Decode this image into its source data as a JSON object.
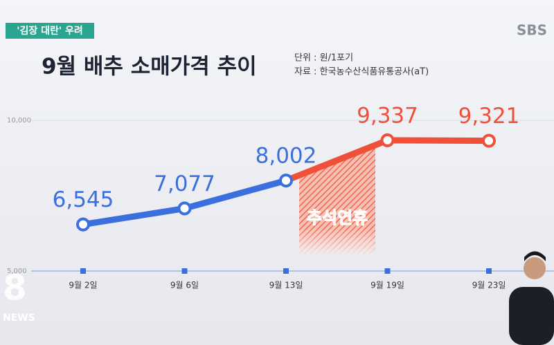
{
  "header": {
    "tag": "'김장 대란' 우려",
    "logo": "SBS",
    "news_logo_number": "8",
    "news_logo_text": "NEWS"
  },
  "chart_data": {
    "type": "line",
    "title": "9월 배추 소매가격 추이",
    "unit_note": "단위 : 원/1포기",
    "source": "자료 : 한국농수산식품유통공사(aT)",
    "annotation": "추석연휴",
    "categories": [
      "9월 2일",
      "9월 6일",
      "9월 13일",
      "9월 19일",
      "9월 23일"
    ],
    "values": [
      6545,
      7077,
      8002,
      9337,
      9321
    ],
    "value_labels": [
      "6,545",
      "7,077",
      "8,002",
      "9,337",
      "9,321"
    ],
    "point_colors": [
      "#3c6fde",
      "#3c6fde",
      "#3c6fde",
      "#f0503a",
      "#f0503a"
    ],
    "ylim": [
      5000,
      10000
    ],
    "yticks": [
      {
        "value": 5000,
        "label": "5,000"
      },
      {
        "value": 10000,
        "label": "10,000"
      }
    ],
    "grid": true
  }
}
